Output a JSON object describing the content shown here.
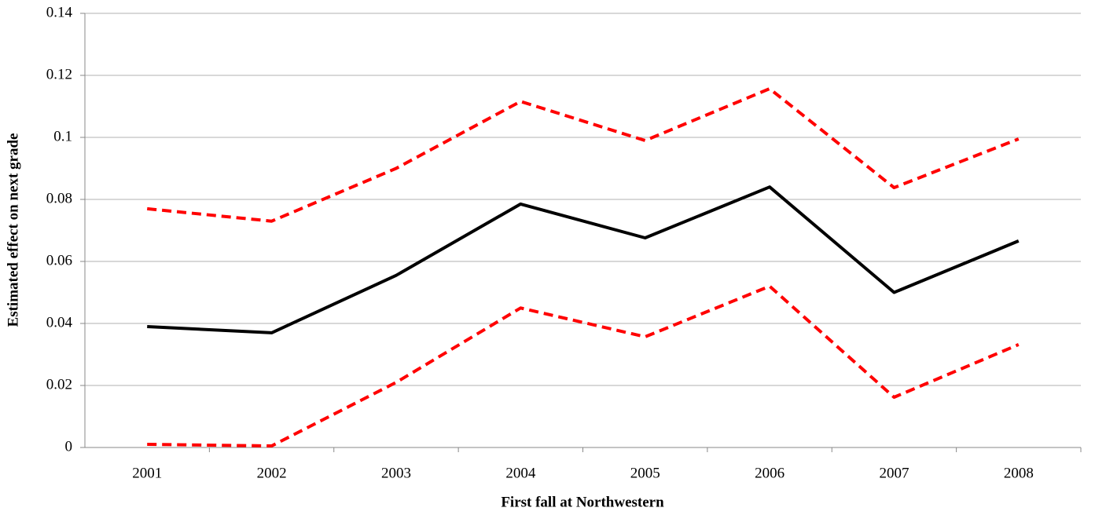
{
  "chart_data": {
    "type": "line",
    "x_label": "First fall at Northwestern",
    "y_label": "Estimated effect on next grade",
    "categories": [
      "2001",
      "2002",
      "2003",
      "2004",
      "2005",
      "2006",
      "2007",
      "2008"
    ],
    "series": [
      {
        "color": "#ff0000",
        "dashed": true,
        "values": [
          0.077,
          0.073,
          0.09,
          0.1116,
          0.099,
          0.1157,
          0.0838,
          0.0995
        ]
      },
      {
        "color": "#000000",
        "dashed": false,
        "values": [
          0.039,
          0.037,
          0.0555,
          0.0785,
          0.0676,
          0.084,
          0.05,
          0.0666
        ]
      },
      {
        "color": "#ff0000",
        "dashed": true,
        "values": [
          0.001,
          0.0005,
          0.021,
          0.045,
          0.0357,
          0.052,
          0.0162,
          0.0332
        ]
      }
    ],
    "ylim": [
      0,
      0.14
    ],
    "yticks": [
      0,
      0.02,
      0.04,
      0.06,
      0.08,
      0.1,
      0.12,
      0.14
    ],
    "grid": true
  }
}
